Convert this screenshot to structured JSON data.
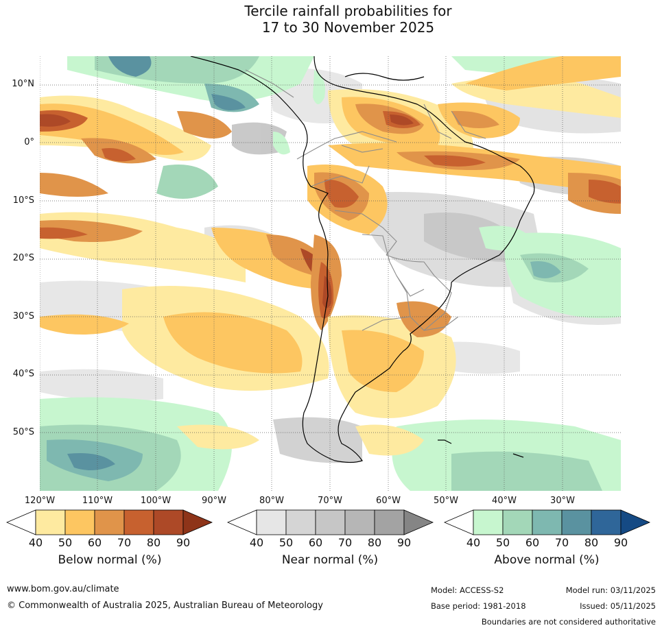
{
  "title": {
    "line1": "Tercile rainfall probabilities for",
    "line2": "17 to 30 November 2025"
  },
  "map": {
    "latitude_labels": [
      "10°N",
      "0°",
      "10°S",
      "20°S",
      "30°S",
      "40°S",
      "50°S"
    ],
    "longitude_labels": [
      "120°W",
      "110°W",
      "100°W",
      "90°W",
      "80°W",
      "70°W",
      "60°W",
      "50°W",
      "40°W",
      "30°W"
    ],
    "ocean_color": "#ffffff",
    "coastline_color": "#000000",
    "border_color": "#8c8c8c"
  },
  "colorbars": [
    {
      "name": "below",
      "label": "Below normal (%)",
      "ticks": [
        "40",
        "50",
        "60",
        "70",
        "80",
        "90"
      ],
      "colors": [
        "#ffffff",
        "#feeaa0",
        "#fdc661",
        "#e0944a",
        "#c7612f",
        "#ad4927",
        "#8e3419"
      ]
    },
    {
      "name": "near",
      "label": "Near normal (%)",
      "ticks": [
        "40",
        "50",
        "60",
        "70",
        "80",
        "90"
      ],
      "colors": [
        "#ffffff",
        "#e6e6e6",
        "#d5d5d5",
        "#c6c6c6",
        "#b6b6b6",
        "#a3a3a3",
        "#858585"
      ]
    },
    {
      "name": "above",
      "label": "Above normal (%)",
      "ticks": [
        "40",
        "50",
        "60",
        "70",
        "80",
        "90"
      ],
      "colors": [
        "#ffffff",
        "#c7f6cf",
        "#a3d7b8",
        "#7eb8b0",
        "#5a92a0",
        "#2f6699",
        "#154a84"
      ]
    }
  ],
  "footer": {
    "website": "www.bom.gov.au/climate",
    "copyright": "© Commonwealth of Australia 2025, Australian Bureau of Meteorology",
    "model": "Model: ACCESS-S2",
    "base_period": "Base period: 1981-2018",
    "model_run": "Model run: 03/11/2025",
    "issued": "Issued: 05/11/2025",
    "disclaimer": "Boundaries are not considered authoritative"
  }
}
